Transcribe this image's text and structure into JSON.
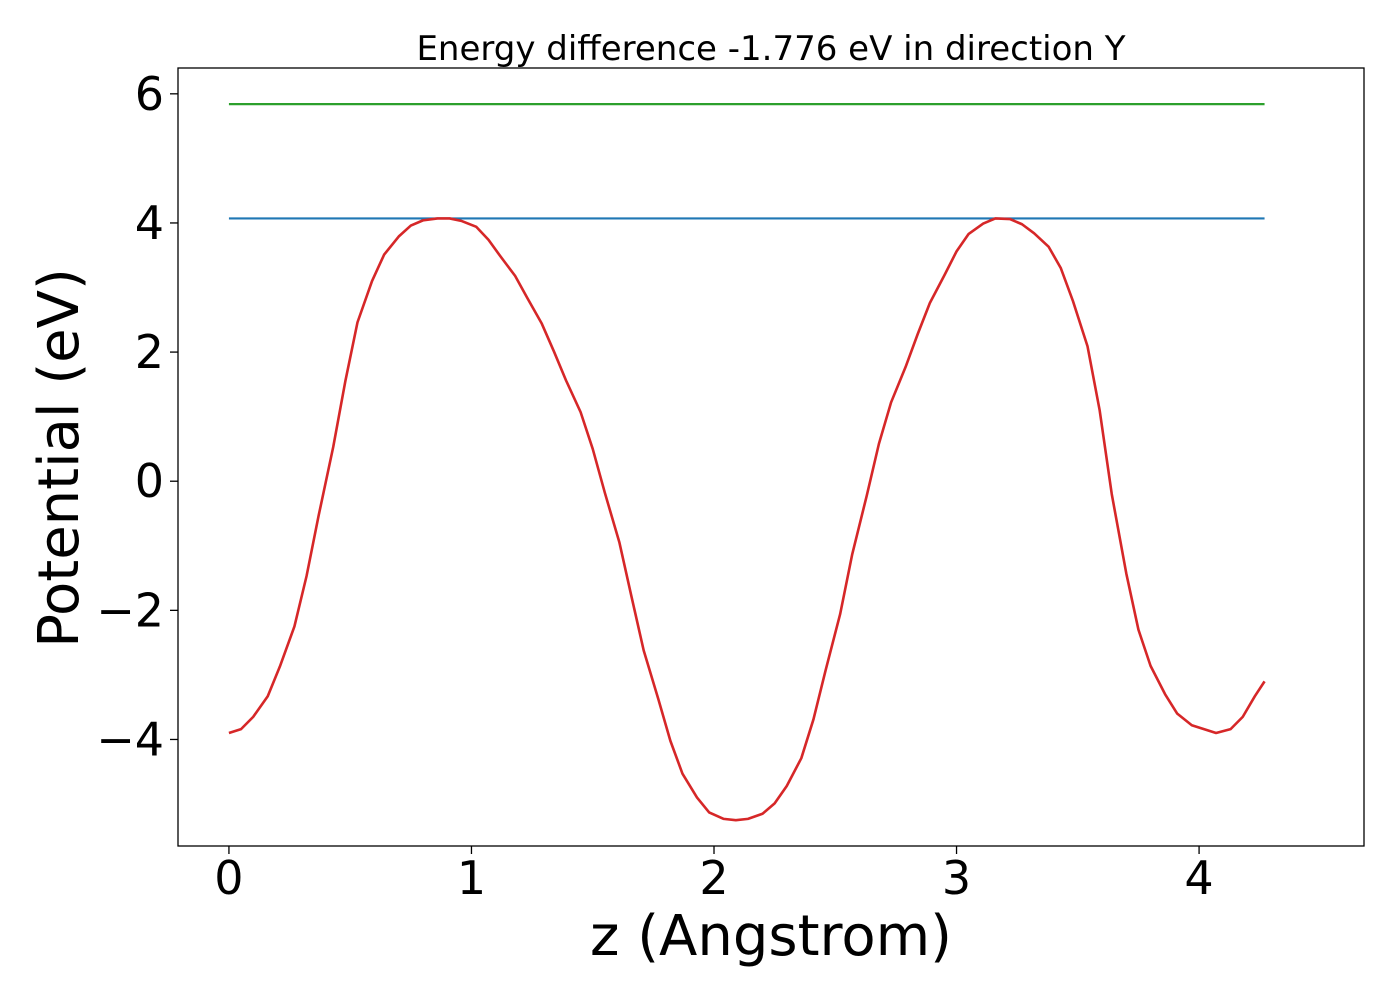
{
  "chart_data": {
    "type": "line",
    "title": "Energy difference -1.776 eV in direction Y",
    "xlabel": "z (Angstrom)",
    "ylabel": "Potential (eV)",
    "xlim": [
      -0.21,
      4.68
    ],
    "ylim": [
      -5.65,
      6.4
    ],
    "grid": false,
    "xticks": [
      0,
      1,
      2,
      3,
      4
    ],
    "xtick_labels": [
      "0",
      "1",
      "2",
      "3",
      "4"
    ],
    "yticks": [
      -4,
      -2,
      0,
      2,
      4,
      6
    ],
    "ytick_labels": [
      "−4",
      "−2",
      "0",
      "2",
      "4",
      "6"
    ],
    "series": [
      {
        "color": "#2ca02c",
        "x": [
          0,
          4.27
        ],
        "y": [
          5.84,
          5.84
        ]
      },
      {
        "color": "#1f77b4",
        "x": [
          0,
          4.27
        ],
        "y": [
          4.07,
          4.07
        ]
      },
      {
        "color": "#d62728",
        "x": [
          0.0,
          0.05,
          0.1,
          0.16,
          0.21,
          0.27,
          0.32,
          0.37,
          0.43,
          0.48,
          0.53,
          0.59,
          0.64,
          0.7,
          0.75,
          0.8,
          0.86,
          0.91,
          0.96,
          1.02,
          1.07,
          1.12,
          1.18,
          1.23,
          1.29,
          1.34,
          1.39,
          1.45,
          1.5,
          1.55,
          1.61,
          1.66,
          1.71,
          1.77,
          1.82,
          1.87,
          1.93,
          1.98,
          2.04,
          2.09,
          2.14,
          2.2,
          2.25,
          2.3,
          2.36,
          2.41,
          2.46,
          2.52,
          2.57,
          2.63,
          2.68,
          2.73,
          2.79,
          2.84,
          2.89,
          2.95,
          3.0,
          3.05,
          3.11,
          3.16,
          3.22,
          3.27,
          3.32,
          3.38,
          3.43,
          3.48,
          3.54,
          3.59,
          3.64,
          3.7,
          3.75,
          3.8,
          3.86,
          3.91,
          3.97,
          4.02,
          4.07,
          4.13,
          4.18,
          4.23,
          4.27
        ],
        "y": [
          -3.9,
          -3.84,
          -3.65,
          -3.33,
          -2.87,
          -2.25,
          -1.47,
          -0.53,
          0.53,
          1.55,
          2.46,
          3.1,
          3.51,
          3.79,
          3.96,
          4.04,
          4.07,
          4.07,
          4.03,
          3.94,
          3.74,
          3.48,
          3.18,
          2.84,
          2.44,
          2.01,
          1.56,
          1.07,
          0.5,
          -0.18,
          -0.95,
          -1.79,
          -2.62,
          -3.37,
          -4.02,
          -4.53,
          -4.9,
          -5.13,
          -5.23,
          -5.25,
          -5.23,
          -5.15,
          -4.99,
          -4.72,
          -4.29,
          -3.69,
          -2.93,
          -2.06,
          -1.13,
          -0.22,
          0.58,
          1.22,
          1.77,
          2.28,
          2.76,
          3.19,
          3.56,
          3.83,
          3.99,
          4.07,
          4.06,
          3.98,
          3.84,
          3.63,
          3.3,
          2.79,
          2.09,
          1.1,
          -0.2,
          -1.43,
          -2.3,
          -2.86,
          -3.3,
          -3.6,
          -3.78,
          -3.84,
          -3.9,
          -3.84,
          -3.65,
          -3.33,
          -3.1
        ]
      }
    ]
  }
}
